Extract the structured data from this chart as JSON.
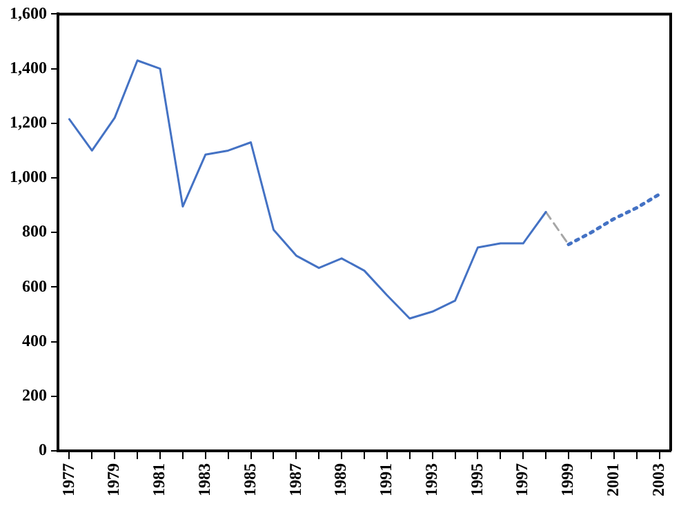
{
  "chart_data": {
    "type": "line",
    "categories": [
      "1977",
      null,
      "1979",
      null,
      "1981",
      null,
      "1983",
      null,
      "1985",
      null,
      "1987",
      null,
      "1989",
      null,
      "1991",
      null,
      "1993",
      null,
      "1995",
      null,
      "1997",
      null,
      "1999",
      null,
      "2001",
      null,
      "2003"
    ],
    "series": [
      {
        "color": "#4472c4",
        "line_style": "solid",
        "values": [
          1215,
          1100,
          1220,
          1430,
          1400,
          895,
          1085,
          1100,
          1130,
          810,
          715,
          670,
          705,
          660,
          570,
          485,
          510,
          550,
          745,
          760,
          760,
          875,
          null,
          null,
          null,
          null,
          null
        ]
      },
      {
        "color": "#a6a6a6",
        "line_style": "dashed",
        "values": [
          null,
          null,
          null,
          null,
          null,
          null,
          null,
          null,
          null,
          null,
          null,
          null,
          null,
          null,
          null,
          null,
          null,
          null,
          null,
          null,
          null,
          875,
          756,
          null,
          null,
          null,
          null
        ]
      },
      {
        "color": "#4472c4",
        "line_style": "dotted",
        "values": [
          null,
          null,
          null,
          null,
          null,
          null,
          null,
          null,
          null,
          null,
          null,
          null,
          null,
          null,
          null,
          null,
          null,
          null,
          null,
          null,
          null,
          null,
          756,
          800,
          850,
          890,
          940
        ]
      }
    ],
    "ylim": [
      0,
      1600
    ],
    "yticks": [
      0,
      200,
      400,
      600,
      800,
      {
        "value": 1000,
        "label": "1,000"
      },
      {
        "value": 1200,
        "label": "1,200"
      },
      {
        "value": 1400,
        "label": "1,400"
      },
      {
        "value": 1600,
        "label": "1,600"
      }
    ],
    "grid": false,
    "legend": false,
    "marker": "none"
  }
}
